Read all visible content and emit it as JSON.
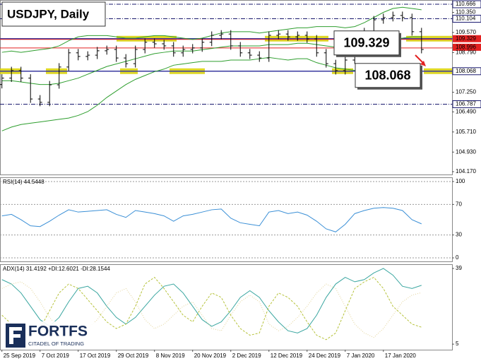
{
  "logo": {
    "name": "FORTFS",
    "tagline": "CITADEL OF TRADING"
  },
  "chart_data": [
    {
      "type": "ohlc",
      "title": "USDJPY, Daily",
      "ylim": [
        104.06,
        110.83
      ],
      "yticks": [
        110.666,
        {
          "value": 110.35,
          "label": "110.350"
        },
        110.104,
        {
          "value": 109.57,
          "label": "109.570"
        },
        109.329,
        108.996,
        {
          "value": 108.79,
          "label": "108.790"
        },
        108.068,
        {
          "value": 107.25,
          "label": "107.250"
        },
        106.787,
        {
          "value": 106.49,
          "label": "106.490"
        },
        {
          "value": 105.71,
          "label": "105.710"
        },
        {
          "value": 104.93,
          "label": "104.930"
        },
        {
          "value": 104.17,
          "label": "104.170"
        }
      ],
      "levels": [
        109.329,
        108.068
      ],
      "dashdot_levels": [
        110.666,
        110.104,
        106.787
      ],
      "price_lines": [
        109.329,
        108.996
      ],
      "color": "#000000",
      "band_color": "#2e9e2e",
      "open": [
        107.55,
        107.8,
        108.09,
        107.8,
        106.99,
        106.86,
        107.54,
        108.23,
        108.78,
        108.64,
        108.69,
        108.86,
        108.91,
        108.58,
        108.36,
        108.91,
        109.19,
        109.13,
        109.05,
        108.78,
        108.91,
        108.97,
        109.19,
        109.46,
        109.51,
        109.05,
        108.78,
        108.69,
        108.58,
        109.46,
        109.51,
        109.4,
        109.46,
        109.32,
        108.78,
        108.36,
        108.09,
        108.5,
        109.19,
        109.6,
        110.06,
        110.15,
        110.23,
        110.15,
        109.6
      ],
      "high": [
        107.95,
        108.24,
        108.24,
        107.95,
        107.14,
        107.69,
        108.38,
        108.93,
        108.93,
        108.84,
        109.01,
        109.06,
        109.06,
        108.73,
        109.06,
        109.34,
        109.34,
        109.28,
        109.2,
        109.06,
        109.12,
        109.34,
        109.61,
        109.66,
        109.66,
        109.2,
        108.93,
        108.84,
        109.61,
        109.66,
        109.66,
        109.61,
        109.61,
        109.47,
        108.93,
        108.51,
        108.65,
        109.34,
        109.75,
        110.21,
        110.3,
        110.38,
        110.38,
        110.3,
        109.75
      ],
      "low": [
        107.4,
        107.65,
        107.65,
        106.84,
        106.71,
        106.71,
        107.39,
        108.08,
        108.49,
        108.49,
        108.54,
        108.71,
        108.43,
        108.21,
        108.21,
        108.76,
        108.98,
        108.9,
        108.63,
        108.63,
        108.76,
        108.82,
        109.04,
        109.31,
        108.9,
        108.63,
        108.54,
        108.43,
        108.43,
        109.31,
        109.25,
        109.25,
        109.17,
        108.63,
        108.21,
        107.94,
        107.94,
        108.35,
        109.04,
        109.45,
        109.91,
        110.0,
        110.0,
        109.45,
        108.76
      ],
      "close": [
        107.8,
        108.09,
        107.8,
        106.99,
        106.86,
        107.54,
        108.23,
        108.78,
        108.64,
        108.69,
        108.86,
        108.91,
        108.58,
        108.36,
        108.91,
        109.19,
        109.13,
        109.05,
        108.78,
        108.91,
        108.97,
        109.19,
        109.46,
        109.51,
        109.05,
        108.78,
        108.69,
        108.58,
        109.46,
        109.51,
        109.4,
        109.46,
        109.32,
        108.78,
        108.36,
        108.09,
        108.5,
        109.19,
        109.6,
        110.06,
        110.15,
        110.23,
        110.15,
        109.6,
        108.91
      ],
      "bands": {
        "upper": [
          108.8,
          108.85,
          108.8,
          108.85,
          108.9,
          108.95,
          109.05,
          109.25,
          109.4,
          109.45,
          109.45,
          109.45,
          109.4,
          109.35,
          109.35,
          109.4,
          109.45,
          109.45,
          109.4,
          109.35,
          109.3,
          109.35,
          109.45,
          109.55,
          109.6,
          109.6,
          109.6,
          109.55,
          109.6,
          109.65,
          109.7,
          109.75,
          109.75,
          109.8,
          109.8,
          109.8,
          109.75,
          109.8,
          109.95,
          110.15,
          110.35,
          110.5,
          110.55,
          110.5,
          110.45
        ],
        "middle": [
          107.7,
          107.7,
          107.65,
          107.6,
          107.55,
          107.55,
          107.6,
          107.7,
          107.8,
          107.95,
          108.1,
          108.25,
          108.35,
          108.45,
          108.55,
          108.65,
          108.75,
          108.8,
          108.85,
          108.85,
          108.85,
          108.9,
          108.95,
          109.0,
          109.05,
          109.05,
          109.05,
          109.05,
          109.1,
          109.1,
          109.1,
          109.15,
          109.15,
          109.1,
          109.05,
          109.0,
          108.95,
          108.95,
          109.0,
          109.1,
          109.2,
          109.3,
          109.35,
          109.4,
          109.4
        ],
        "lower": [
          105.75,
          105.9,
          106.0,
          106.05,
          106.1,
          106.15,
          106.2,
          106.25,
          106.35,
          106.5,
          106.75,
          107.05,
          107.3,
          107.55,
          107.75,
          107.9,
          108.05,
          108.15,
          108.3,
          108.35,
          108.4,
          108.45,
          108.45,
          108.45,
          108.5,
          108.5,
          108.5,
          108.55,
          108.6,
          108.55,
          108.5,
          108.55,
          108.55,
          108.4,
          108.3,
          108.2,
          108.15,
          108.1,
          108.05,
          108.05,
          108.05,
          108.1,
          108.15,
          108.3,
          108.35
        ]
      }
    },
    {
      "type": "line",
      "title": "RSI(14) 44.5448",
      "ylim": [
        -4.6,
        105.5
      ],
      "yticks": [
        0,
        30,
        70,
        100
      ],
      "grid": true,
      "series": [
        {
          "color": "#3a8fd6",
          "values": [
            55,
            57,
            50,
            42,
            41,
            48,
            56,
            63,
            60,
            61,
            62,
            63,
            57,
            53,
            62,
            60,
            58,
            55,
            48,
            55,
            57,
            60,
            63,
            64,
            52,
            46,
            44,
            42,
            60,
            62,
            58,
            60,
            56,
            48,
            38,
            34,
            44,
            58,
            62,
            65,
            66,
            65,
            62,
            50,
            44.54
          ]
        }
      ]
    },
    {
      "type": "line",
      "title": "ADX(14) 31.4192 +DI:12.6021 -DI:28.1544",
      "ylim": [
        2.5,
        40.9
      ],
      "yticks": [
        39,
        5
      ],
      "grid": false,
      "xlim": [
        -0.2,
        47.2
      ],
      "xticks": [
        {
          "value": 0,
          "label": "25 Sep 2019"
        },
        {
          "value": 4,
          "label": "7 Oct 2019"
        },
        {
          "value": 8,
          "label": "17 Oct 2019"
        },
        {
          "value": 12,
          "label": "29 Oct 2019"
        },
        {
          "value": 16,
          "label": "8 Nov 2019"
        },
        {
          "value": 20,
          "label": "20 Nov 2019"
        },
        {
          "value": 24,
          "label": "2 Dec 2019"
        },
        {
          "value": 28,
          "label": "12 Dec 2019"
        },
        {
          "value": 32,
          "label": "24 Dec 2019"
        },
        {
          "value": 36,
          "label": "7 Jan 2020"
        },
        {
          "value": 40,
          "label": "17 Jan 2020"
        }
      ],
      "series": [
        {
          "color": "#3aa6a0",
          "values": [
            34,
            32,
            28,
            22,
            16,
            13,
            17,
            24,
            30,
            31,
            28,
            22,
            17,
            14,
            17,
            22,
            27,
            31,
            32,
            28,
            22,
            16,
            13,
            15,
            20,
            26,
            29,
            26,
            20,
            15,
            11,
            10,
            12,
            18,
            26,
            32,
            35,
            33,
            34,
            37,
            39,
            36,
            31,
            30,
            31.42
          ]
        },
        {
          "color": "#b6c23a",
          "values": [
            18,
            14,
            10,
            9,
            12,
            20,
            28,
            32,
            30,
            25,
            20,
            15,
            12,
            14,
            22,
            32,
            35,
            30,
            24,
            18,
            15,
            22,
            28,
            26,
            18,
            12,
            9,
            10,
            22,
            28,
            26,
            22,
            15,
            9,
            7,
            10,
            20,
            30,
            33,
            35,
            30,
            22,
            18,
            14,
            12.6
          ]
        },
        {
          "color": "#e3d49a",
          "values": [
            30,
            32,
            33,
            30,
            24,
            17,
            12,
            9,
            10,
            12,
            16,
            22,
            28,
            30,
            24,
            16,
            12,
            14,
            18,
            22,
            24,
            18,
            12,
            11,
            18,
            24,
            27,
            24,
            14,
            11,
            13,
            17,
            22,
            28,
            32,
            30,
            22,
            14,
            10,
            8,
            12,
            18,
            24,
            27,
            28.15
          ]
        }
      ]
    }
  ]
}
